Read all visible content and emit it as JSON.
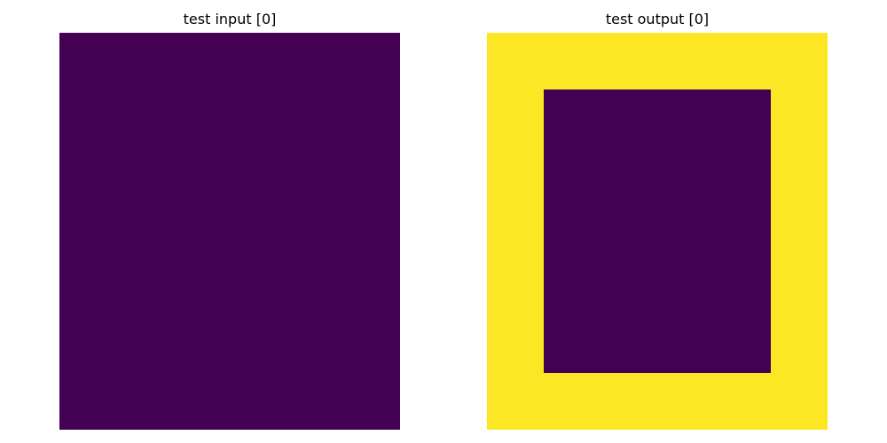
{
  "colors": {
    "0": "#440154",
    "4": "#fde725"
  },
  "panels": [
    {
      "title": "test input [0]",
      "grid": [
        [
          0,
          0,
          0,
          0,
          0,
          0
        ],
        [
          0,
          0,
          0,
          0,
          0,
          0
        ],
        [
          0,
          0,
          0,
          0,
          0,
          0
        ],
        [
          0,
          0,
          0,
          0,
          0,
          0
        ],
        [
          0,
          0,
          0,
          0,
          0,
          0
        ],
        [
          0,
          0,
          0,
          0,
          0,
          0
        ],
        [
          0,
          0,
          0,
          0,
          0,
          0
        ]
      ]
    },
    {
      "title": "test output [0]",
      "grid": [
        [
          4,
          4,
          4,
          4,
          4,
          4
        ],
        [
          4,
          0,
          0,
          0,
          0,
          4
        ],
        [
          4,
          0,
          0,
          0,
          0,
          4
        ],
        [
          4,
          0,
          0,
          0,
          0,
          4
        ],
        [
          4,
          0,
          0,
          0,
          0,
          4
        ],
        [
          4,
          0,
          0,
          0,
          0,
          4
        ],
        [
          4,
          4,
          4,
          4,
          4,
          4
        ]
      ]
    }
  ]
}
